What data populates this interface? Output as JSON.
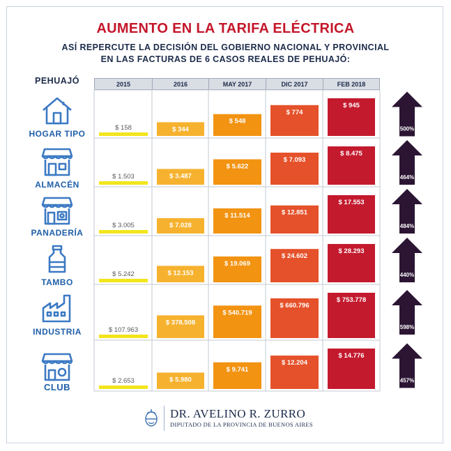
{
  "title": "AUMENTO EN LA TARIFA ELÉCTRICA",
  "subtitle_line1": "ASÍ REPERCUTE LA DECISIÓN DEL GOBIERNO NACIONAL Y PROVINCIAL",
  "subtitle_line2": "EN LAS FACTURAS DE 6 CASOS REALES DE PEHUAJÓ:",
  "place_label": "PEHUAJÓ",
  "colors": {
    "2015": "#f2e51c",
    "2016": "#f6b22f",
    "MAY 2017": "#f29312",
    "DIC 2017": "#e5512a",
    "FEB 2018": "#c41a2e",
    "arrow": "#2b1533",
    "label_dark": "#5a5a5a",
    "icon": "#3b79c3"
  },
  "icons": [
    "house-icon",
    "store-icon",
    "bakery-icon",
    "milk-can-icon",
    "factory-icon",
    "club-icon"
  ],
  "chart_data": {
    "type": "bar",
    "categories": [
      "2015",
      "2016",
      "MAY 2017",
      "DIC 2017",
      "FEB 2018"
    ],
    "rows": [
      {
        "name": "HOGAR TIPO",
        "values": [
          158,
          344,
          548,
          774,
          945
        ],
        "labels": [
          "$ 158",
          "$ 344",
          "$ 548",
          "$ 774",
          "$ 945"
        ],
        "increase": "500%"
      },
      {
        "name": "ALMACÉN",
        "values": [
          1503,
          3487,
          5622,
          7093,
          8475
        ],
        "labels": [
          "$ 1.503",
          "$ 3.487",
          "$ 5.622",
          "$ 7.093",
          "$ 8.475"
        ],
        "increase": "464%"
      },
      {
        "name": "PANADERÍA",
        "values": [
          3005,
          7028,
          11514,
          12851,
          17553
        ],
        "labels": [
          "$ 3.005",
          "$ 7.028",
          "$ 11.514",
          "$ 12.851",
          "$ 17.553"
        ],
        "increase": "484%"
      },
      {
        "name": "TAMBO",
        "values": [
          5242,
          12153,
          19069,
          24602,
          28293
        ],
        "labels": [
          "$ 5.242",
          "$ 12.153",
          "$ 19.069",
          "$ 24.602",
          "$ 28.293"
        ],
        "increase": "440%"
      },
      {
        "name": "INDUSTRIA",
        "values": [
          107963,
          378508,
          540719,
          660796,
          753778
        ],
        "labels": [
          "$ 107.963",
          "$ 378.508",
          "$ 540.719",
          "$ 660.796",
          "$ 753.778"
        ],
        "increase": "598%"
      },
      {
        "name": "CLUB",
        "values": [
          2653,
          5980,
          9741,
          12204,
          14776
        ],
        "labels": [
          "$ 2.653",
          "$ 5.980",
          "$ 9.741",
          "$ 12.204",
          "$ 14.776"
        ],
        "increase": "457%"
      }
    ]
  },
  "footer": {
    "name": "DR. AVELINO R. ZURRO",
    "role": "DIPUTADO DE LA PROVINCIA DE BUENOS AIRES"
  }
}
